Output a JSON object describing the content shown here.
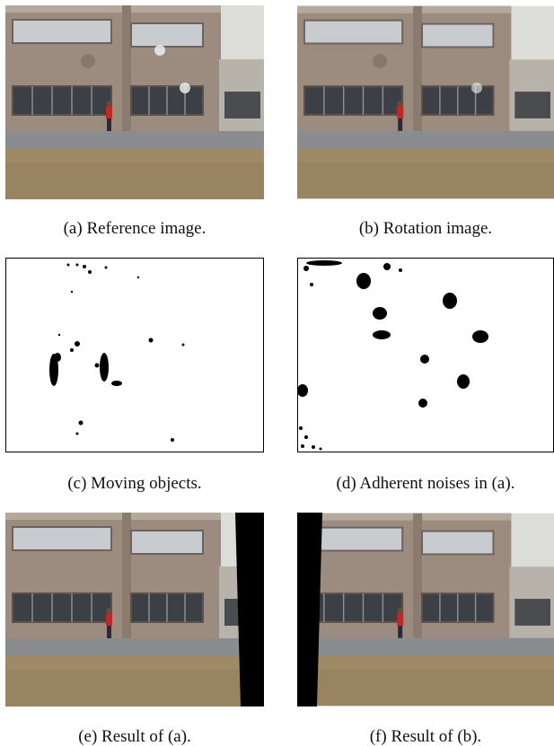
{
  "figure": {
    "subfigures": [
      {
        "caption": "(a) Reference image."
      },
      {
        "caption": "(b) Rotation image."
      },
      {
        "caption": "(c) Moving objects."
      },
      {
        "caption": "(d) Adherent noises in (a)."
      },
      {
        "caption": "(e) Result of (a)."
      },
      {
        "caption": "(f) Result of (b)."
      }
    ]
  }
}
